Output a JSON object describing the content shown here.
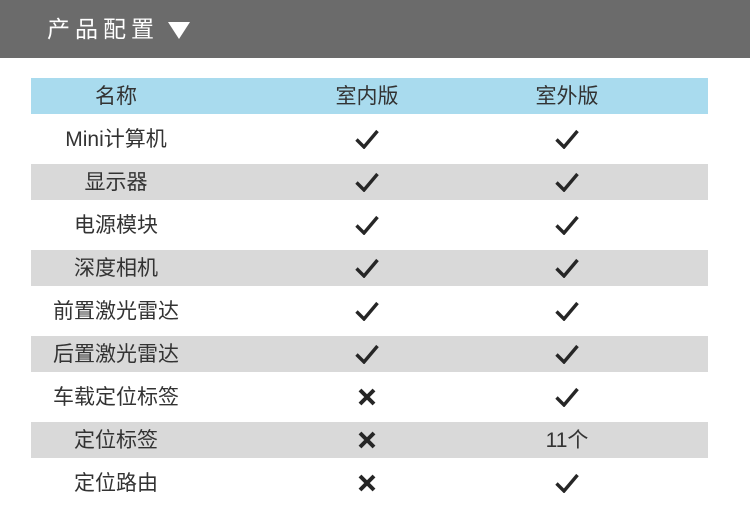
{
  "topbar": {
    "title": "产品配置",
    "caret_icon": "triangle-down-icon"
  },
  "table": {
    "header": {
      "name": "名称",
      "indoor": "室内版",
      "outdoor": "室外版"
    },
    "rows": [
      {
        "name": "Mini计算机",
        "indoor": "check",
        "outdoor": "check"
      },
      {
        "name": "显示器",
        "indoor": "check",
        "outdoor": "check"
      },
      {
        "name": "电源模块",
        "indoor": "check",
        "outdoor": "check"
      },
      {
        "name": "深度相机",
        "indoor": "check",
        "outdoor": "check"
      },
      {
        "name": "前置激光雷达",
        "indoor": "check",
        "outdoor": "check"
      },
      {
        "name": "后置激光雷达",
        "indoor": "check",
        "outdoor": "check"
      },
      {
        "name": "车载定位标签",
        "indoor": "cross",
        "outdoor": "check"
      },
      {
        "name": "定位标签",
        "indoor": "cross",
        "outdoor": "11个"
      },
      {
        "name": "定位路由",
        "indoor": "cross",
        "outdoor": "check"
      }
    ]
  },
  "icons": {
    "check": "check-icon",
    "cross": "cross-icon"
  },
  "colors": {
    "topbar_bg": "#6b6b6b",
    "topbar_text": "#ffffff",
    "header_bg": "#a9dbee",
    "stripe_bg": "#d9d9d9",
    "text": "#333333",
    "mark": "#262626"
  }
}
